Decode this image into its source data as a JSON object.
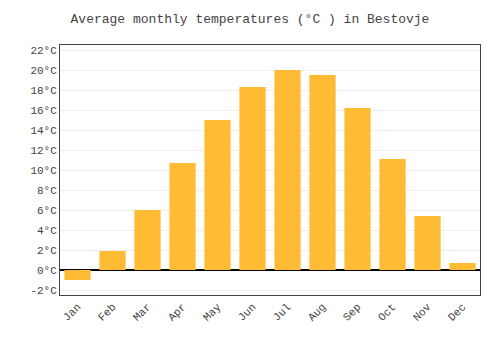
{
  "chart_data": {
    "type": "bar",
    "title": "Average monthly temperatures (°C ) in Bestovje",
    "categories": [
      "Jan",
      "Feb",
      "Mar",
      "Apr",
      "May",
      "Jun",
      "Jul",
      "Aug",
      "Sep",
      "Oct",
      "Nov",
      "Dec"
    ],
    "values": [
      -1.0,
      1.9,
      6.0,
      10.7,
      15.0,
      18.3,
      20.0,
      19.5,
      16.2,
      11.1,
      5.4,
      0.7
    ],
    "color": "#FFBB33",
    "ylim": [
      -2.5,
      22.5
    ],
    "yticks": [
      {
        "value": -2,
        "label": "-2°C"
      },
      {
        "value": 0,
        "label": "0°C"
      },
      {
        "value": 2,
        "label": "2°C"
      },
      {
        "value": 4,
        "label": "4°C"
      },
      {
        "value": 6,
        "label": "6°C"
      },
      {
        "value": 8,
        "label": "8°C"
      },
      {
        "value": 10,
        "label": "10°C"
      },
      {
        "value": 12,
        "label": "12°C"
      },
      {
        "value": 14,
        "label": "14°C"
      },
      {
        "value": 16,
        "label": "16°C"
      },
      {
        "value": 18,
        "label": "18°C"
      },
      {
        "value": 20,
        "label": "20°C"
      },
      {
        "value": 22,
        "label": "22°C"
      }
    ],
    "grid": true
  }
}
